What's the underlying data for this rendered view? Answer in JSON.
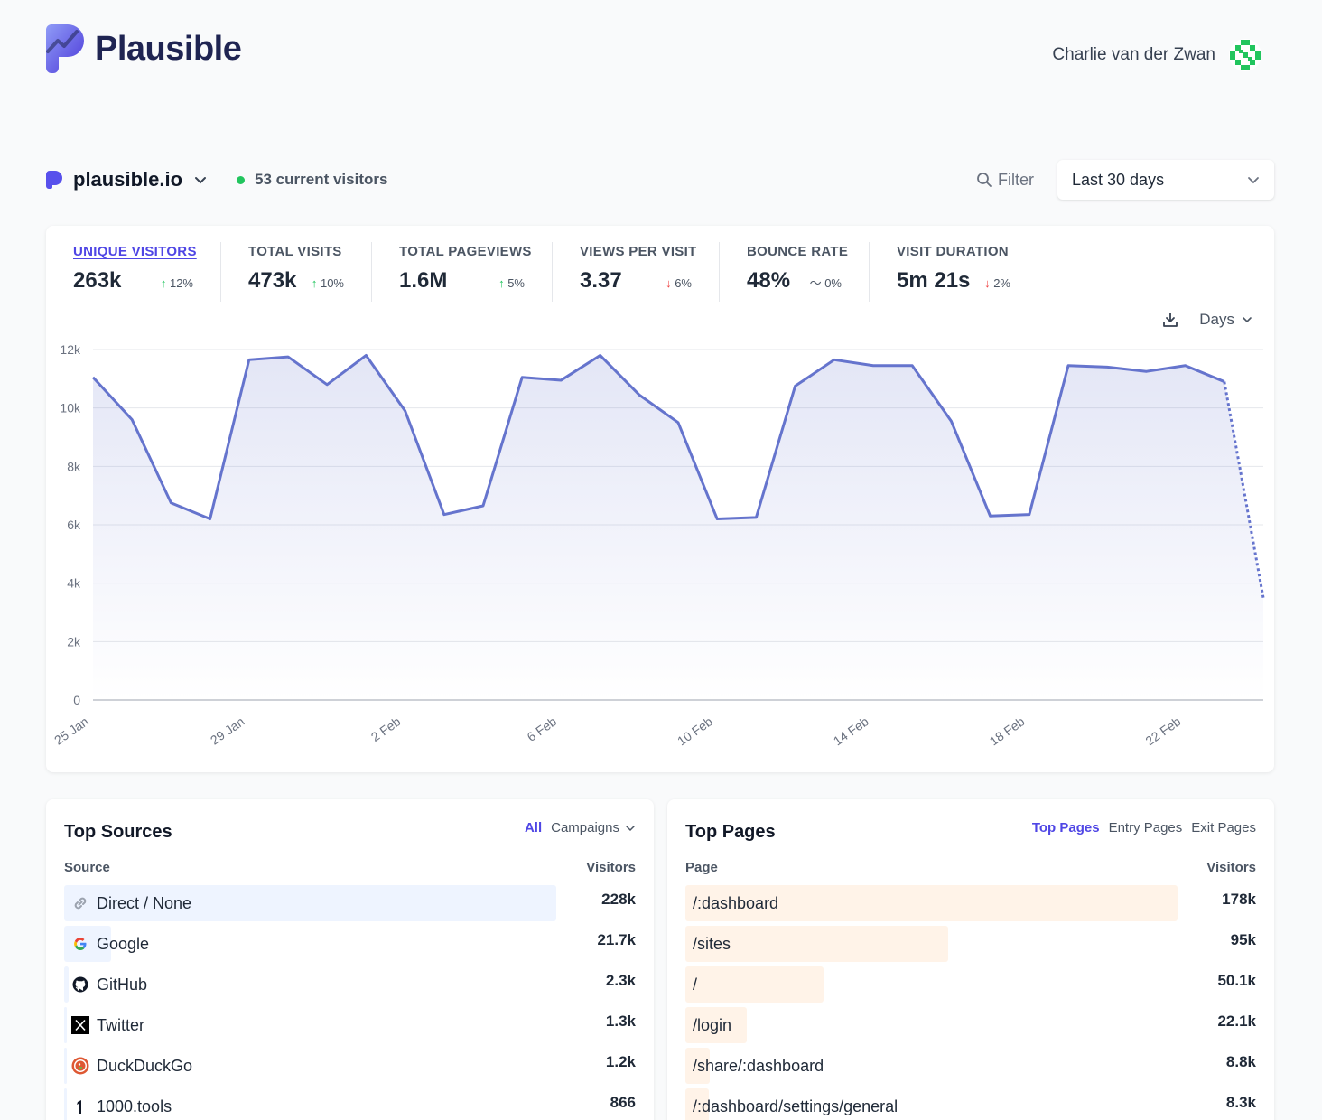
{
  "app": {
    "brand": "Plausible",
    "brand_color": "#5850ec"
  },
  "user": {
    "name": "Charlie van der Zwan"
  },
  "site": {
    "domain": "plausible.io",
    "current_visitors": "53 current visitors"
  },
  "toolbar": {
    "filter_label": "Filter",
    "period_label": "Last 30 days"
  },
  "stats": [
    {
      "label": "UNIQUE VISITORS",
      "value": "263k",
      "change": "12%",
      "direction": "up",
      "active": true
    },
    {
      "label": "TOTAL VISITS",
      "value": "473k",
      "change": "10%",
      "direction": "up"
    },
    {
      "label": "TOTAL PAGEVIEWS",
      "value": "1.6M",
      "change": "5%",
      "direction": "up"
    },
    {
      "label": "VIEWS PER VISIT",
      "value": "3.37",
      "change": "6%",
      "direction": "down"
    },
    {
      "label": "BOUNCE RATE",
      "value": "48%",
      "change": "0%",
      "direction": "flat"
    },
    {
      "label": "VISIT DURATION",
      "value": "5m 21s",
      "change": "2%",
      "direction": "down"
    }
  ],
  "chart_controls": {
    "interval_label": "Days"
  },
  "chart_data": {
    "type": "area",
    "title": "",
    "xlabel": "",
    "ylabel": "",
    "ylim": [
      0,
      12000
    ],
    "yticks": [
      "0",
      "2k",
      "4k",
      "6k",
      "8k",
      "10k",
      "12k"
    ],
    "xtick_labels": [
      "25 Jan",
      "29 Jan",
      "2 Feb",
      "6 Feb",
      "10 Feb",
      "14 Feb",
      "18 Feb",
      "22 Feb"
    ],
    "x": [
      "25 Jan",
      "26 Jan",
      "27 Jan",
      "28 Jan",
      "29 Jan",
      "30 Jan",
      "31 Jan",
      "1 Feb",
      "2 Feb",
      "3 Feb",
      "4 Feb",
      "5 Feb",
      "6 Feb",
      "7 Feb",
      "8 Feb",
      "9 Feb",
      "10 Feb",
      "11 Feb",
      "12 Feb",
      "13 Feb",
      "14 Feb",
      "15 Feb",
      "16 Feb",
      "17 Feb",
      "18 Feb",
      "19 Feb",
      "20 Feb",
      "21 Feb",
      "22 Feb",
      "23 Feb",
      "24 Feb"
    ],
    "series": [
      {
        "values": [
          11050,
          9600,
          6750,
          6200,
          11650,
          11750,
          10800,
          11800,
          9900,
          6350,
          6650,
          11050,
          10950,
          11800,
          10450,
          9500,
          6200,
          6250,
          10750,
          11650,
          11450,
          11450,
          9550,
          6300,
          6350,
          11450,
          11400,
          11250,
          11450,
          10900,
          3500
        ]
      }
    ],
    "incomplete_last_point": true,
    "grid": true,
    "color": "#6574cd"
  },
  "sources": {
    "title": "Top Sources",
    "tabs": {
      "all": "All",
      "campaigns": "Campaigns"
    },
    "col_source": "Source",
    "col_visitors": "Visitors",
    "rows": [
      {
        "label": "Direct / None",
        "value": "228k",
        "icon": "link-icon",
        "share": 1.0
      },
      {
        "label": "Google",
        "value": "21.7k",
        "icon": "google-icon",
        "share": 0.095
      },
      {
        "label": "GitHub",
        "value": "2.3k",
        "icon": "github-icon",
        "share": 0.01
      },
      {
        "label": "Twitter",
        "value": "1.3k",
        "icon": "twitter-x-icon",
        "share": 0.006
      },
      {
        "label": "DuckDuckGo",
        "value": "1.2k",
        "icon": "duckduckgo-icon",
        "share": 0.005
      },
      {
        "label": "1000.tools",
        "value": "866",
        "icon": "1000-tools-icon",
        "share": 0.004
      }
    ]
  },
  "pages": {
    "title": "Top Pages",
    "tabs": {
      "top": "Top Pages",
      "entry": "Entry Pages",
      "exit": "Exit Pages"
    },
    "col_page": "Page",
    "col_visitors": "Visitors",
    "rows": [
      {
        "label": "/:dashboard",
        "value": "178k",
        "share": 1.0
      },
      {
        "label": "/sites",
        "value": "95k",
        "share": 0.534
      },
      {
        "label": "/",
        "value": "50.1k",
        "share": 0.281
      },
      {
        "label": "/login",
        "value": "22.1k",
        "share": 0.124
      },
      {
        "label": "/share/:dashboard",
        "value": "8.8k",
        "share": 0.049
      },
      {
        "label": "/:dashboard/settings/general",
        "value": "8.3k",
        "share": 0.047
      }
    ]
  }
}
